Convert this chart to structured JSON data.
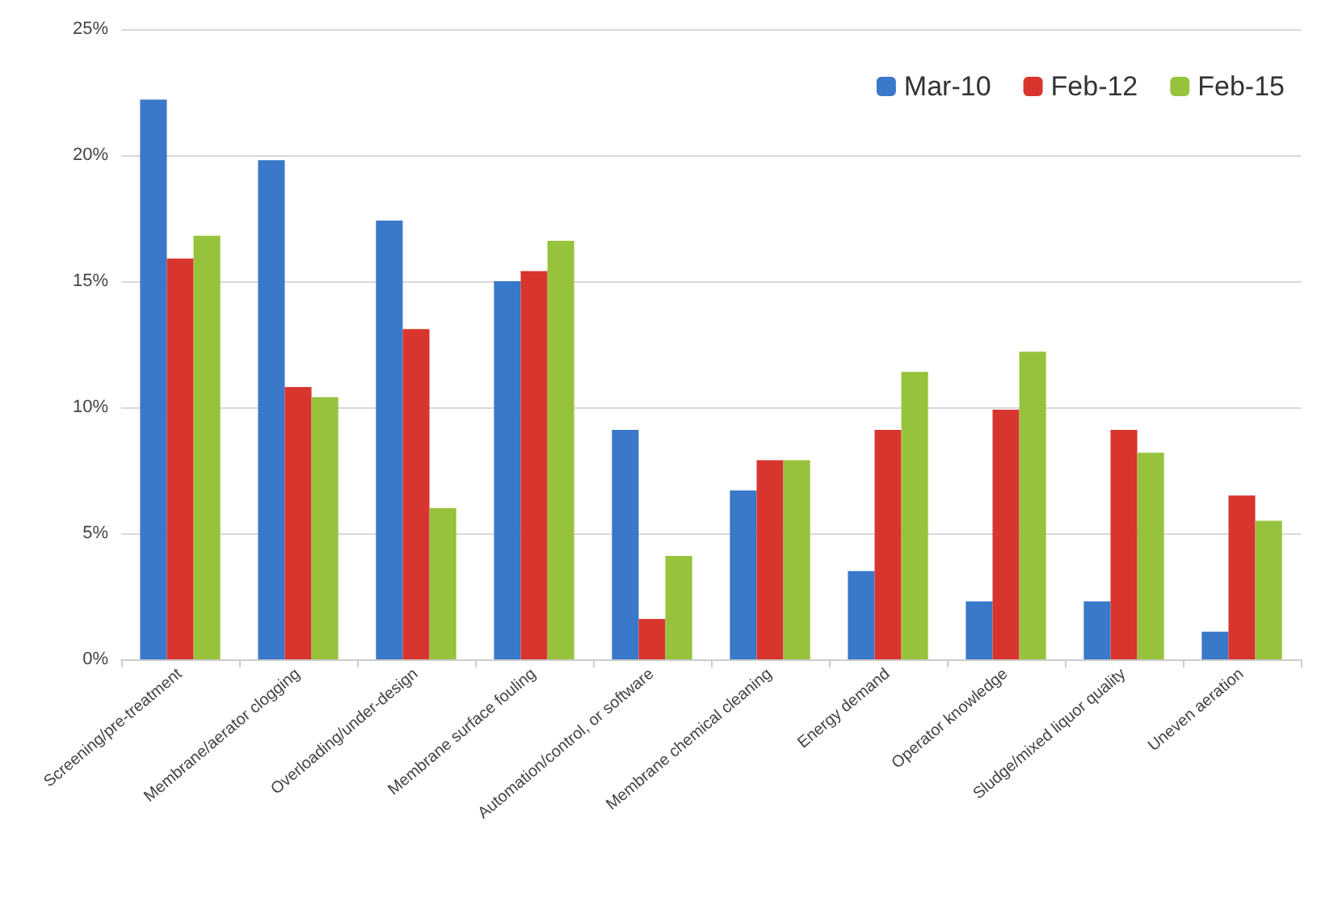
{
  "chart_data": {
    "type": "bar",
    "categories": [
      "Screening/pre-treatment",
      "Membrane/aerator clogging",
      "Overloading/under-design",
      "Membrane surface fouling",
      "Automation/control, or software",
      "Membrane chemical cleaning",
      "Energy demand",
      "Operator knowledge",
      "Sludge/mixed liquor quality",
      "Uneven aeration"
    ],
    "series": [
      {
        "name": "Mar-10",
        "color": "#3a78c9",
        "values": [
          22.2,
          19.8,
          17.4,
          15.0,
          9.1,
          6.7,
          3.5,
          2.3,
          2.3,
          1.1
        ]
      },
      {
        "name": "Feb-12",
        "color": "#d9352f",
        "values": [
          15.9,
          10.8,
          13.1,
          15.4,
          1.6,
          7.9,
          9.1,
          9.9,
          9.1,
          6.5
        ]
      },
      {
        "name": "Feb-15",
        "color": "#97c23c",
        "values": [
          16.8,
          10.4,
          6.0,
          16.6,
          4.1,
          7.9,
          11.4,
          12.2,
          8.2,
          5.5
        ]
      }
    ],
    "ylim": [
      0,
      25
    ],
    "yticks": [
      {
        "value": 0,
        "label": "0%"
      },
      {
        "value": 5,
        "label": "5%"
      },
      {
        "value": 10,
        "label": "10%"
      },
      {
        "value": 15,
        "label": "15%"
      },
      {
        "value": 20,
        "label": "20%"
      },
      {
        "value": 25,
        "label": "25%"
      }
    ],
    "grid": "y",
    "legend": "top right"
  }
}
